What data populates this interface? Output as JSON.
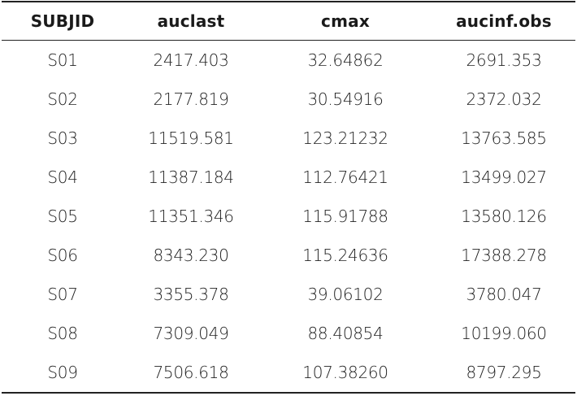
{
  "table": {
    "headers": [
      "SUBJID",
      "auclast",
      "cmax",
      "aucinf.obs"
    ],
    "rows": [
      [
        "S01",
        "2417.403",
        "32.64862",
        "2691.353"
      ],
      [
        "S02",
        "2177.819",
        "30.54916",
        "2372.032"
      ],
      [
        "S03",
        "11519.581",
        "123.21232",
        "13763.585"
      ],
      [
        "S04",
        "11387.184",
        "112.76421",
        "13499.027"
      ],
      [
        "S05",
        "11351.346",
        "115.91788",
        "13580.126"
      ],
      [
        "S06",
        "8343.230",
        "115.24636",
        "17388.278"
      ],
      [
        "S07",
        "3355.378",
        "39.06102",
        "3780.047"
      ],
      [
        "S08",
        "7309.049",
        "88.40854",
        "10199.060"
      ],
      [
        "S09",
        "7506.618",
        "107.38260",
        "8797.295"
      ]
    ]
  }
}
